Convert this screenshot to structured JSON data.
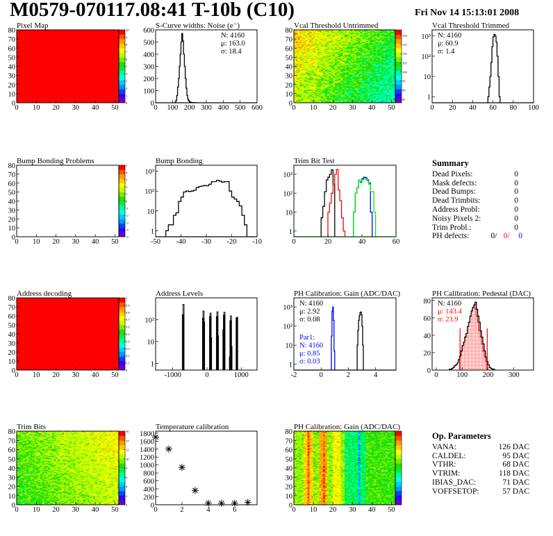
{
  "header": {
    "title": "M0579-070117.08:41 T-10b (C10)",
    "datetime": "Fri Nov 14 15:13:01 2008"
  },
  "colors": {
    "palette": [
      "#6a00cc",
      "#3300ff",
      "#0044ff",
      "#0099ff",
      "#00ccff",
      "#00ffee",
      "#00ff99",
      "#00ee44",
      "#22dd00",
      "#77ee00",
      "#bbff00",
      "#ffff00",
      "#ffcc00",
      "#ff9900",
      "#ff5500",
      "#ff0000"
    ]
  },
  "chart_data": [
    {
      "type": "heatmap",
      "title": "Pixel Map",
      "xlim": [
        0,
        52
      ],
      "ylim": [
        0,
        80
      ],
      "xticks": [
        "0",
        "10",
        "20",
        "30",
        "40",
        "50"
      ],
      "yticks": [
        "0",
        "10",
        "20",
        "30",
        "40",
        "50",
        "60",
        "70",
        "80"
      ],
      "zlim": [
        0,
        10
      ],
      "zticks": [
        "0",
        "1",
        "2",
        "3",
        "4",
        "5",
        "6",
        "7",
        "8",
        "9",
        "10"
      ],
      "fill_value": 10
    },
    {
      "type": "bar",
      "title": "S-Curve widths: Noise (e⁻)",
      "xlim": [
        0,
        600
      ],
      "ylim": [
        0,
        600
      ],
      "log_y": false,
      "xticks": [
        "0",
        "100",
        "200",
        "300",
        "400",
        "500",
        "600"
      ],
      "yticks": [
        "0",
        "100",
        "200",
        "300",
        "400",
        "500",
        "600"
      ],
      "series": [
        {
          "color": "#000000",
          "x0": 115,
          "width": 5,
          "values": [
            5,
            20,
            60,
            130,
            200,
            300,
            400,
            500,
            570,
            510,
            400,
            300,
            200,
            120,
            60,
            30,
            15,
            8,
            5,
            3,
            2,
            1,
            1,
            1,
            1
          ]
        }
      ],
      "stats": {
        "position": "top-right",
        "lines": [
          {
            "text": "N: 4160",
            "color": "#000000"
          },
          {
            "text": "μ: 163.0",
            "color": "#000000"
          },
          {
            "text": "σ: 18.4",
            "color": "#000000"
          }
        ]
      }
    },
    {
      "type": "heatmap",
      "title": "Vcal Threshold Untrimmed",
      "xlim": [
        0,
        52
      ],
      "ylim": [
        0,
        80
      ],
      "xticks": [
        "0",
        "10",
        "20",
        "30",
        "40",
        "50"
      ],
      "yticks": [
        "0",
        "10",
        "20",
        "30",
        "40",
        "50",
        "60",
        "70",
        "80"
      ],
      "zlim": [
        83,
        123
      ],
      "zticks": [
        "85",
        "90",
        "95",
        "100",
        "105",
        "110",
        "115",
        "120"
      ]
    },
    {
      "type": "bar",
      "title": "Vcal Threshold Trimmed",
      "xlim": [
        0,
        100
      ],
      "ylim": [
        0.5,
        2000
      ],
      "log_y": true,
      "xticks": [
        "0",
        "20",
        "40",
        "60",
        "80",
        "100"
      ],
      "yticks": [
        "1",
        "10",
        "10²",
        "10³"
      ],
      "series": [
        {
          "color": "#000000",
          "x0": 55,
          "width": 1,
          "values": [
            1,
            3,
            10,
            50,
            300,
            900,
            1200,
            1000,
            500,
            100,
            10,
            1
          ]
        }
      ],
      "stats": {
        "position": "top-left",
        "lines": [
          {
            "text": "N: 4160",
            "color": "#000000"
          },
          {
            "text": "μ: 60.9",
            "color": "#000000"
          },
          {
            "text": "σ:  1.4",
            "color": "#000000"
          }
        ]
      }
    },
    {
      "type": "heatmap",
      "title": "Bump Bonding Problems",
      "xlim": [
        0,
        52
      ],
      "ylim": [
        0,
        80
      ],
      "xticks": [
        "0",
        "10",
        "20",
        "30",
        "40",
        "50"
      ],
      "yticks": [
        "0",
        "10",
        "20",
        "30",
        "40",
        "50",
        "60",
        "70",
        "80"
      ],
      "zlim": [
        -5,
        5
      ],
      "zticks": [
        "-5",
        "-4",
        "-3",
        "-2",
        "-1",
        "0",
        "1",
        "2",
        "3",
        "4",
        "5"
      ],
      "fill_value": null
    },
    {
      "type": "bar",
      "title": "Bump Bonding",
      "xlim": [
        -50,
        -10
      ],
      "ylim": [
        0.5,
        2000
      ],
      "log_y": true,
      "xticks": [
        "-50",
        "-40",
        "-30",
        "-20",
        "-10"
      ],
      "yticks": [
        "1",
        "10",
        "10²",
        "10³"
      ],
      "series": [
        {
          "color": "#000000",
          "x0": -46,
          "width": 1,
          "values": [
            1,
            2,
            2,
            6,
            8,
            30,
            50,
            90,
            100,
            95,
            100,
            110,
            150,
            170,
            180,
            190,
            185,
            220,
            300,
            300,
            350,
            320,
            280,
            300,
            300,
            100,
            50,
            40,
            30,
            18,
            6,
            2
          ]
        }
      ]
    },
    {
      "type": "bar",
      "title": "Trim Bit Test",
      "xlim": [
        0,
        60
      ],
      "ylim": [
        0.5,
        3000
      ],
      "log_y": true,
      "xticks": [
        "0",
        "20",
        "40",
        "60"
      ],
      "yticks": [
        "1",
        "10",
        "10²",
        "10³"
      ],
      "series": [
        {
          "color": "#000000",
          "x0": 16,
          "width": 1,
          "values": [
            5,
            20,
            120,
            500,
            700,
            1000,
            1700,
            300
          ]
        },
        {
          "color": "#ff0000",
          "x0": 20,
          "width": 1,
          "values": [
            10,
            30,
            100,
            300,
            1000,
            1800,
            150,
            40,
            5,
            1
          ]
        },
        {
          "color": "#0000ff",
          "x0": 35,
          "width": 1,
          "values": [
            10,
            100,
            200,
            500,
            400,
            600,
            700,
            650,
            500,
            350,
            10
          ]
        },
        {
          "color": "#00ee00",
          "x0": 35,
          "width": 1,
          "values": [
            10,
            100,
            200,
            500,
            350,
            500,
            550,
            550,
            450,
            300,
            120,
            120,
            10
          ]
        }
      ]
    },
    {
      "type": "text",
      "title": "Summary"
    },
    {
      "type": "heatmap",
      "title": "Address decoding",
      "xlim": [
        0,
        52
      ],
      "ylim": [
        0,
        80
      ],
      "xticks": [
        "0",
        "10",
        "20",
        "30",
        "40",
        "50"
      ],
      "yticks": [
        "0",
        "10",
        "20",
        "30",
        "40",
        "50",
        "60",
        "70",
        "80"
      ],
      "zlim": [
        0,
        1
      ],
      "zticks": [
        "0",
        "0.1",
        "0.2",
        "0.3",
        "0.4",
        "0.5",
        "0.6",
        "0.7",
        "0.8",
        "0.9",
        "1"
      ],
      "fill_value": 1
    },
    {
      "type": "bar",
      "title": "Address Levels",
      "xlim": [
        -1500,
        1460
      ],
      "ylim": [
        0.5,
        1000
      ],
      "log_y": true,
      "xticks": [
        "-1000",
        "0",
        "1000"
      ],
      "xtick_values": [
        -1000,
        0,
        1000
      ],
      "yticks": [
        "1",
        "10",
        "10²"
      ],
      "spikes": [
        [
          -710,
          170
        ],
        [
          -690,
          500
        ],
        [
          -120,
          120
        ],
        [
          -105,
          250
        ],
        [
          -90,
          80
        ],
        [
          85,
          140
        ],
        [
          100,
          200
        ],
        [
          115,
          15
        ],
        [
          285,
          140
        ],
        [
          300,
          230
        ],
        [
          315,
          18
        ],
        [
          475,
          35
        ],
        [
          490,
          160
        ],
        [
          505,
          220
        ],
        [
          665,
          2
        ],
        [
          680,
          90
        ],
        [
          695,
          150
        ],
        [
          710,
          6
        ],
        [
          860,
          120
        ],
        [
          875,
          130
        ]
      ]
    },
    {
      "type": "bar",
      "title": "PH Calibration: Gain (ADC/DAC)",
      "xlim": [
        -2,
        5.5
      ],
      "ylim": [
        0.5,
        3000
      ],
      "log_y": true,
      "xticks": [
        "-2",
        "0",
        "2",
        "4"
      ],
      "yticks": [
        "1",
        "10",
        "10²",
        "10³"
      ],
      "series": [
        {
          "color": "#0000ff",
          "x0": 0.75,
          "width": 0.05,
          "values": [
            30,
            600,
            1000,
            200,
            5
          ]
        },
        {
          "color": "#000000",
          "x0": 2.65,
          "width": 0.05,
          "values": [
            10,
            60,
            200,
            350,
            500,
            550,
            400,
            100,
            10
          ]
        }
      ],
      "stats": {
        "position": "top-left",
        "lines": [
          {
            "text": "N: 4160",
            "color": "#000000"
          },
          {
            "text": "μ: 2.92",
            "color": "#000000"
          },
          {
            "text": "σ: 0.08",
            "color": "#000000"
          }
        ]
      },
      "stats2": {
        "position": "bottom-left",
        "lines": [
          {
            "text": "Par1:",
            "color": "#0000ff"
          },
          {
            "text": "N: 4160",
            "color": "#0000ff"
          },
          {
            "text": "μ: 0.85",
            "color": "#0000ff"
          },
          {
            "text": "σ: 0.03",
            "color": "#0000ff"
          }
        ]
      }
    },
    {
      "type": "bar",
      "title": "PH Calibration: Pedestal (DAC)",
      "xlim": [
        -16,
        376
      ],
      "ylim": [
        0,
        83
      ],
      "log_y": false,
      "xticks": [
        "0",
        "100",
        "200",
        "300"
      ],
      "yticks": [
        "0",
        "20",
        "40",
        "60",
        "80"
      ],
      "series": [
        {
          "color": "#ff0000",
          "fill": true,
          "x0": 90,
          "width": 5,
          "values": [
            16,
            22,
            28,
            32,
            38,
            42,
            50,
            55,
            62,
            68,
            72,
            75,
            70,
            62,
            55,
            45,
            38,
            30,
            22,
            15,
            10
          ]
        },
        {
          "color": "#000000",
          "x0": 50,
          "width": 5,
          "values": [
            1,
            1,
            2,
            3,
            5,
            6,
            8,
            12,
            16,
            22,
            28,
            32,
            38,
            42,
            50,
            55,
            62,
            68,
            72,
            75,
            78,
            70,
            62,
            55,
            45,
            38,
            30,
            22,
            15,
            10,
            6,
            3,
            2,
            1,
            1
          ]
        }
      ],
      "cut_lines": [
        92,
        197
      ],
      "cut_height": 48,
      "stats": {
        "position": "top-left",
        "lines": [
          {
            "text": "N: 4160",
            "color": "#000000"
          },
          {
            "text": "μ: 143.4",
            "color": "#ff0000"
          },
          {
            "text": "σ: 23.9",
            "color": "#ff0000"
          }
        ]
      }
    },
    {
      "type": "heatmap",
      "title": "Trim Bits",
      "xlim": [
        0,
        52
      ],
      "ylim": [
        0,
        80
      ],
      "xticks": [
        "0",
        "10",
        "20",
        "30",
        "40",
        "50"
      ],
      "yticks": [
        "0",
        "10",
        "20",
        "30",
        "40",
        "50",
        "60",
        "70",
        "80"
      ],
      "zlim": [
        0,
        16
      ],
      "zticks": [
        "0",
        "2",
        "4",
        "6",
        "8",
        "10",
        "12",
        "14",
        "16"
      ]
    },
    {
      "type": "scatter",
      "title": "Temperature calibration",
      "xlim": [
        0,
        7.7
      ],
      "ylim": [
        0,
        1850
      ],
      "xticks": [
        "0",
        "2",
        "4",
        "6"
      ],
      "yticks": [
        "0",
        "200",
        "400",
        "600",
        "800",
        "1000",
        "1200",
        "1400",
        "1600",
        "1800"
      ],
      "x": [
        0,
        1,
        2,
        3,
        4,
        5,
        6,
        7
      ],
      "y": [
        1700,
        1400,
        940,
        360,
        40,
        40,
        40,
        60
      ]
    },
    {
      "type": "heatmap",
      "title": "PH Calibration: Gain (ADC/DAC)",
      "xlim": [
        0,
        52
      ],
      "ylim": [
        0,
        80
      ],
      "xticks": [
        "0",
        "10",
        "20",
        "30",
        "40",
        "50"
      ],
      "yticks": [
        "0",
        "10",
        "20",
        "30",
        "40",
        "50",
        "60",
        "70",
        "80"
      ],
      "zlim": [
        0,
        1
      ],
      "zticks": []
    },
    {
      "type": "text",
      "title": "Op. Parameters"
    }
  ],
  "summary": {
    "title": "Summary",
    "rows": [
      {
        "label": "Dead Pixels:",
        "value": "0"
      },
      {
        "label": "Mask defects:",
        "value": "0"
      },
      {
        "label": "Dead Bumps:",
        "value": "0"
      },
      {
        "label": "Dead Trimbits:",
        "value": "0"
      },
      {
        "label": "Address Probl:",
        "value": "0"
      },
      {
        "label": "Noisy Pixels 2:",
        "value": "0"
      },
      {
        "label": "Trim Probl.:",
        "value": "0"
      }
    ],
    "ph_defects": {
      "label": "PH defects:",
      "values": [
        {
          "text": "0/",
          "color": "#000000"
        },
        {
          "text": "0/",
          "color": "#ff0000"
        },
        {
          "text": "0",
          "color": "#0000ff"
        }
      ]
    }
  },
  "op_parameters": {
    "title": "Op. Parameters",
    "rows": [
      {
        "label": "VANA:",
        "value": "126 DAC"
      },
      {
        "label": "CALDEL:",
        "value": "95 DAC"
      },
      {
        "label": "VTHR:",
        "value": "68 DAC"
      },
      {
        "label": "VTRIM:",
        "value": "118 DAC"
      },
      {
        "label": "IBIAS_DAC:",
        "value": "71 DAC"
      },
      {
        "label": "VOFFSETOP:",
        "value": "57 DAC"
      }
    ]
  }
}
